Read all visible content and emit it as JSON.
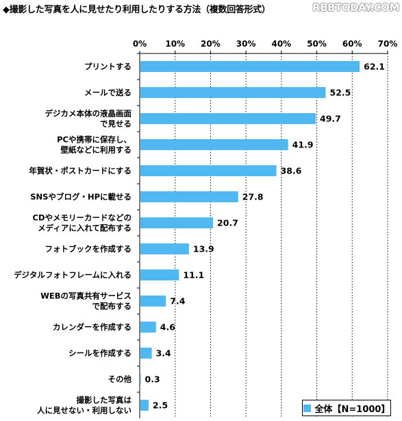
{
  "title": "◆撮影した写真を人に見せたり利用したりする方法（複数回答形式）",
  "watermark": "RBBTODAY.COM",
  "colors": {
    "bar": "#4fb8f0",
    "axis": "#000000",
    "grid": "#000000"
  },
  "chart_data": {
    "type": "bar",
    "orientation": "horizontal",
    "title": "◆撮影した写真を人に見せたり利用したりする方法（複数回答形式）",
    "xlim": [
      0,
      70
    ],
    "xticks": [
      0,
      10,
      20,
      30,
      40,
      50,
      60,
      70
    ],
    "tick_suffix": "%",
    "grid": true,
    "legend_position": "bottom-right",
    "categories": [
      [
        "プリントする"
      ],
      [
        "メールで送る"
      ],
      [
        "デジカメ本体の液晶画面",
        "で見せる"
      ],
      [
        "PCや携帯に保存し、",
        "壁紙などに利用する"
      ],
      [
        "年賀状・ポストカードにする"
      ],
      [
        "SNSやブログ・HPに載せる"
      ],
      [
        "CDやメモリーカードなどの",
        "メディアに入れて配布する"
      ],
      [
        "フォトブックを作成する"
      ],
      [
        "デジタルフォトフレームに入れる"
      ],
      [
        "WEBの写真共有サービス",
        "で配布する"
      ],
      [
        "カレンダーを作成する"
      ],
      [
        "シールを作成する"
      ],
      [
        "その他"
      ],
      [
        "撮影した写真は",
        "人に見せない・利用しない"
      ]
    ],
    "series": [
      {
        "name": "全体【N=1000】",
        "values": [
          62.1,
          52.5,
          49.7,
          41.9,
          38.6,
          27.8,
          20.7,
          13.9,
          11.1,
          7.4,
          4.6,
          3.4,
          0.3,
          2.5
        ],
        "labels": [
          "62.1",
          "52.5",
          "49.7",
          "41.9",
          "38.6",
          "27.8",
          "20.7",
          "13.9",
          "11.1",
          "7.4",
          "4.6",
          "3.4",
          "0.3",
          "2.5"
        ]
      }
    ]
  }
}
